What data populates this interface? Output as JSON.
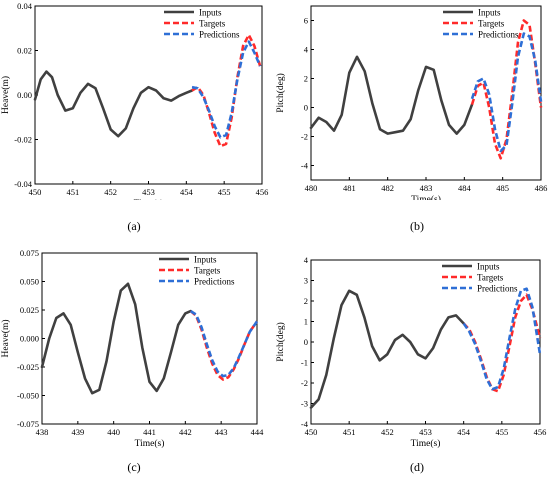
{
  "legend": {
    "inputs": "Inputs",
    "targets": "Targets",
    "predictions": "Predictions"
  },
  "colors": {
    "inputs": "#404040",
    "targets": "#ff2a2a",
    "predictions": "#2e6fd6",
    "axis": "#000000"
  },
  "panel_labels": [
    "(a)",
    "(b)",
    "(c)",
    "(d)"
  ],
  "chart_data": [
    {
      "type": "line",
      "label": "(a)",
      "xlabel": "Time(s)",
      "ylabel": "Heave(m)",
      "xlim": [
        450,
        456
      ],
      "ylim": [
        -0.04,
        0.04
      ],
      "xticks": [
        450,
        451,
        452,
        453,
        454,
        455,
        456
      ],
      "yticks": [
        -0.04,
        -0.02,
        0.0,
        0.02,
        0.04
      ],
      "ytick_labels": [
        "-0.04",
        "-0.02",
        "0.00",
        "0.02",
        "0.04"
      ],
      "grid": false,
      "legend_position": "top-right",
      "series": [
        {
          "name": "Inputs",
          "x": [
            450.0,
            450.15,
            450.3,
            450.45,
            450.6,
            450.8,
            451.0,
            451.2,
            451.4,
            451.6,
            451.8,
            452.0,
            452.2,
            452.4,
            452.6,
            452.8,
            453.0,
            453.2,
            453.4,
            453.6,
            453.8,
            454.0,
            454.15
          ],
          "y": [
            -0.002,
            0.007,
            0.0105,
            0.008,
            0.0,
            -0.007,
            -0.006,
            0.001,
            0.005,
            0.003,
            -0.006,
            -0.0155,
            -0.0185,
            -0.015,
            -0.006,
            0.001,
            0.0035,
            0.002,
            -0.0015,
            -0.0025,
            -0.0005,
            0.001,
            0.002
          ]
        },
        {
          "name": "Targets",
          "x": [
            454.15,
            454.3,
            454.45,
            454.6,
            454.75,
            454.9,
            455.05,
            455.2,
            455.35,
            455.5,
            455.65,
            455.8,
            455.95
          ],
          "y": [
            0.002,
            0.0035,
            0.0,
            -0.008,
            -0.017,
            -0.023,
            -0.022,
            -0.01,
            0.008,
            0.022,
            0.027,
            0.022,
            0.013
          ]
        },
        {
          "name": "Predictions",
          "x": [
            454.15,
            454.3,
            454.45,
            454.6,
            454.75,
            454.9,
            455.05,
            455.2,
            455.35,
            455.5,
            455.65,
            455.8,
            455.95
          ],
          "y": [
            0.0035,
            0.003,
            -0.001,
            -0.007,
            -0.014,
            -0.019,
            -0.018,
            -0.008,
            0.007,
            0.019,
            0.024,
            0.019,
            0.013
          ]
        }
      ]
    },
    {
      "type": "line",
      "label": "(b)",
      "xlabel": "Time(s)",
      "ylabel": "Pitch(deg)",
      "xlim": [
        480,
        486
      ],
      "ylim": [
        -5,
        7
      ],
      "xticks": [
        480,
        481,
        482,
        483,
        484,
        485,
        486
      ],
      "yticks": [
        -4,
        -2,
        0,
        2,
        4,
        6
      ],
      "ytick_labels": [
        "-4",
        "-2",
        "0",
        "2",
        "4",
        "6"
      ],
      "grid": false,
      "legend_position": "top-right",
      "series": [
        {
          "name": "Inputs",
          "x": [
            480.0,
            480.2,
            480.4,
            480.6,
            480.8,
            481.0,
            481.2,
            481.4,
            481.6,
            481.8,
            482.0,
            482.2,
            482.4,
            482.6,
            482.8,
            483.0,
            483.2,
            483.4,
            483.6,
            483.8,
            484.0,
            484.2
          ],
          "y": [
            -1.4,
            -0.7,
            -1.0,
            -1.6,
            -0.5,
            2.4,
            3.5,
            2.5,
            0.3,
            -1.5,
            -1.8,
            -1.7,
            -1.6,
            -0.8,
            1.2,
            2.8,
            2.6,
            0.5,
            -1.2,
            -1.8,
            -1.2,
            0.2
          ]
        },
        {
          "name": "Targets",
          "x": [
            484.2,
            484.35,
            484.5,
            484.65,
            484.8,
            484.95,
            485.1,
            485.25,
            485.4,
            485.55,
            485.7,
            485.85,
            486.0
          ],
          "y": [
            0.2,
            1.5,
            1.7,
            0.0,
            -2.5,
            -3.5,
            -2.2,
            1.0,
            4.5,
            6.0,
            5.7,
            3.0,
            0.0
          ]
        },
        {
          "name": "Predictions",
          "x": [
            484.2,
            484.35,
            484.5,
            484.65,
            484.8,
            484.95,
            485.1,
            485.25,
            485.4,
            485.55,
            485.7,
            485.85,
            486.0
          ],
          "y": [
            0.6,
            1.8,
            2.0,
            0.9,
            -1.5,
            -3.0,
            -2.6,
            0.3,
            3.5,
            5.1,
            4.9,
            3.2,
            0.4
          ]
        }
      ]
    },
    {
      "type": "line",
      "label": "(c)",
      "xlabel": "Time(s)",
      "ylabel": "Heave(m)",
      "xlim": [
        438,
        444
      ],
      "ylim": [
        -0.075,
        0.075
      ],
      "xticks": [
        438,
        439,
        440,
        441,
        442,
        443,
        444
      ],
      "yticks": [
        -0.075,
        -0.05,
        -0.025,
        0.0,
        0.025,
        0.05,
        0.075
      ],
      "ytick_labels": [
        "-0.075",
        "-0.050",
        "-0.025",
        "0.000",
        "0.025",
        "0.050",
        "0.075"
      ],
      "grid": false,
      "legend_position": "top-right",
      "series": [
        {
          "name": "Inputs",
          "x": [
            438.0,
            438.2,
            438.4,
            438.6,
            438.8,
            439.0,
            439.2,
            439.4,
            439.6,
            439.8,
            440.0,
            440.2,
            440.4,
            440.6,
            440.8,
            441.0,
            441.2,
            441.4,
            441.6,
            441.8,
            442.0,
            442.15
          ],
          "y": [
            -0.025,
            0.0,
            0.018,
            0.022,
            0.012,
            -0.012,
            -0.035,
            -0.048,
            -0.045,
            -0.02,
            0.015,
            0.042,
            0.048,
            0.03,
            -0.008,
            -0.038,
            -0.046,
            -0.035,
            -0.012,
            0.012,
            0.022,
            0.024
          ]
        },
        {
          "name": "Targets",
          "x": [
            442.15,
            442.3,
            442.45,
            442.6,
            442.75,
            442.9,
            443.05,
            443.2,
            443.35,
            443.5,
            443.65,
            443.8,
            444.0
          ],
          "y": [
            0.024,
            0.02,
            0.008,
            -0.008,
            -0.022,
            -0.032,
            -0.036,
            -0.034,
            -0.027,
            -0.017,
            -0.005,
            0.006,
            0.015
          ]
        },
        {
          "name": "Predictions",
          "x": [
            442.15,
            442.3,
            442.45,
            442.6,
            442.75,
            442.9,
            443.05,
            443.2,
            443.35,
            443.5,
            443.65,
            443.8,
            444.0
          ],
          "y": [
            0.024,
            0.021,
            0.01,
            -0.005,
            -0.019,
            -0.029,
            -0.033,
            -0.032,
            -0.026,
            -0.016,
            -0.005,
            0.006,
            0.015
          ]
        }
      ]
    },
    {
      "type": "line",
      "label": "(d)",
      "xlabel": "Time(s)",
      "ylabel": "Pitch(deg)",
      "xlim": [
        450,
        456
      ],
      "ylim": [
        -4,
        4
      ],
      "xticks": [
        450,
        451,
        452,
        453,
        454,
        455,
        456
      ],
      "yticks": [
        -4,
        -3,
        -2,
        -1,
        0,
        1,
        2,
        3,
        4
      ],
      "ytick_labels": [
        "-4",
        "-3",
        "-2",
        "-1",
        "0",
        "1",
        "2",
        "3",
        "4"
      ],
      "grid": false,
      "legend_position": "top-right",
      "series": [
        {
          "name": "Inputs",
          "x": [
            450.0,
            450.2,
            450.4,
            450.6,
            450.8,
            451.0,
            451.2,
            451.4,
            451.6,
            451.8,
            452.0,
            452.2,
            452.4,
            452.6,
            452.8,
            453.0,
            453.2,
            453.4,
            453.6,
            453.8,
            454.0
          ],
          "y": [
            -3.2,
            -2.8,
            -1.6,
            0.2,
            1.8,
            2.5,
            2.3,
            1.2,
            -0.2,
            -0.9,
            -0.6,
            0.1,
            0.35,
            0.0,
            -0.6,
            -0.8,
            -0.3,
            0.6,
            1.2,
            1.3,
            0.9
          ]
        },
        {
          "name": "Targets",
          "x": [
            454.0,
            454.15,
            454.3,
            454.45,
            454.6,
            454.75,
            454.9,
            455.05,
            455.2,
            455.35,
            455.5,
            455.65,
            455.8,
            456.0
          ],
          "y": [
            0.9,
            0.6,
            0.0,
            -0.8,
            -1.7,
            -2.3,
            -2.4,
            -1.6,
            -0.2,
            1.2,
            2.0,
            2.3,
            1.6,
            0.2
          ]
        },
        {
          "name": "Predictions",
          "x": [
            454.0,
            454.15,
            454.3,
            454.45,
            454.6,
            454.75,
            454.9,
            455.05,
            455.2,
            455.35,
            455.5,
            455.65,
            455.8,
            456.0
          ],
          "y": [
            0.9,
            0.5,
            -0.1,
            -0.9,
            -1.8,
            -2.3,
            -2.2,
            -1.3,
            0.2,
            1.6,
            2.5,
            2.6,
            1.7,
            -0.6
          ]
        }
      ]
    }
  ]
}
